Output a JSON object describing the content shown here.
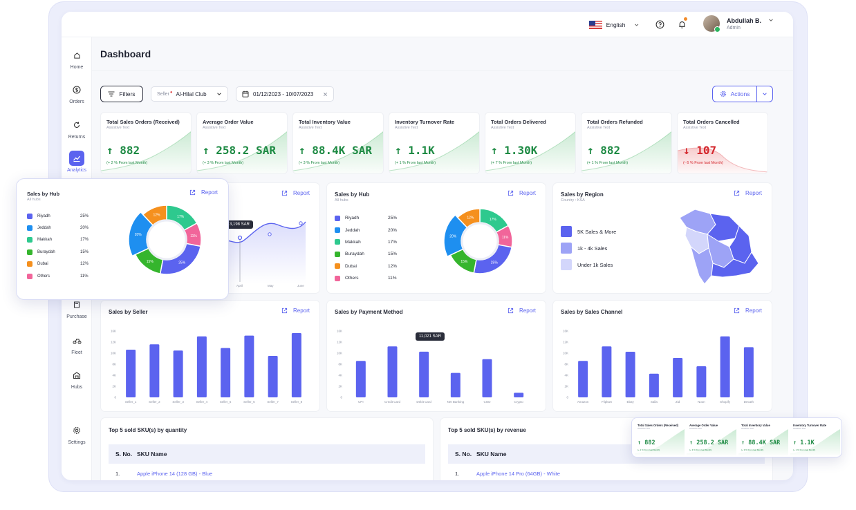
{
  "header": {
    "language": "English",
    "user_name": "Abdullah B.",
    "user_role": "Admin"
  },
  "sidebar": {
    "items": [
      {
        "label": "Home",
        "icon": "home-icon"
      },
      {
        "label": "Orders",
        "icon": "dollar-icon"
      },
      {
        "label": "Returns",
        "icon": "returns-icon"
      },
      {
        "label": "Analytics",
        "icon": "analytics-icon",
        "active": true
      },
      {
        "label": "Purchase",
        "icon": "purchase-icon"
      },
      {
        "label": "Fleet",
        "icon": "fleet-icon"
      },
      {
        "label": "Hubs",
        "icon": "hubs-icon"
      },
      {
        "label": "Settings",
        "icon": "gear-icon"
      }
    ]
  },
  "page": {
    "title": "Dashboard",
    "filters_label": "Filters",
    "seller_label": "Seller",
    "seller_value": "Al-Hilal Club",
    "date_range": "01/12/2023 - 10/07/2023",
    "actions_label": "Actions"
  },
  "kpis": [
    {
      "title": "Total Sales Orders (Received)",
      "sub": "Assistive Text",
      "value": "↑ 882",
      "note": "(+ 2 % From last Month)",
      "trend": "up"
    },
    {
      "title": "Average Order Value",
      "sub": "Assistive Text",
      "value": "↑ 258.2 SAR",
      "note": "(+ 3 % From last Month)",
      "trend": "up"
    },
    {
      "title": "Total Inventory Value",
      "sub": "Assistive Text",
      "value": "↑ 88.4K SAR",
      "note": "(+ 3 % From last Month)",
      "trend": "up"
    },
    {
      "title": "Inventory Turnover Rate",
      "sub": "Assistive Text",
      "value": "↑ 1.1K",
      "note": "(+ 1 % From last Month)",
      "trend": "up"
    },
    {
      "title": "Total Orders Delivered",
      "sub": "Assistive Text",
      "value": "↑ 1.30K",
      "note": "(+ 7 % From last Month)",
      "trend": "up"
    },
    {
      "title": "Total Orders Refunded",
      "sub": "Assistive Text",
      "value": "↑ 882",
      "note": "(+ 1 % From last Month)",
      "trend": "up"
    },
    {
      "title": "Total Orders Cancelled",
      "sub": "Assistive Text",
      "value": "↓ 107",
      "note": "(- 6 % From last Month)",
      "trend": "down"
    }
  ],
  "report_label": "Report",
  "line_card": {
    "tooltip": "3,198 SAR",
    "x_labels": [
      "April",
      "May",
      "June"
    ]
  },
  "sales_by_hub": {
    "title": "Sales by Hub",
    "sub": "All hubs",
    "items": [
      {
        "name": "Riyadh",
        "pct": "25%",
        "value": 25,
        "color": "#5b63ef"
      },
      {
        "name": "Jeddah",
        "pct": "20%",
        "value": 20,
        "color": "#1e8ff0"
      },
      {
        "name": "Makkah",
        "pct": "17%",
        "value": 17,
        "color": "#2ec98e"
      },
      {
        "name": "Buraydah",
        "pct": "15%",
        "value": 15,
        "color": "#35b52d"
      },
      {
        "name": "Dubai",
        "pct": "12%",
        "value": 12,
        "color": "#f5901e"
      },
      {
        "name": "Others",
        "pct": "11%",
        "value": 11,
        "color": "#f1659a"
      }
    ]
  },
  "sales_by_region": {
    "title": "Sales by Region",
    "sub": "Country : KSA",
    "legend": [
      {
        "label": "5K Sales & More",
        "color": "#5b63ef"
      },
      {
        "label": "1k - 4k Sales",
        "color": "#9da3f6"
      },
      {
        "label": "Under 1k Sales",
        "color": "#d3d6fb"
      }
    ]
  },
  "bar_charts": {
    "y_ticks": [
      "16K",
      "12K",
      "10K",
      "8K",
      "4K",
      "2K",
      "0"
    ],
    "seller": {
      "title": "Sales by Seller",
      "chart_data": {
        "type": "bar",
        "categories": [
          "Seller_1",
          "Seller_2",
          "Seller_3",
          "Seller_4",
          "Seller_5",
          "Seller_6",
          "Seller_7",
          "Seller_8"
        ],
        "values": [
          11500,
          12800,
          11300,
          14700,
          11900,
          14900,
          10000,
          15500
        ],
        "ylim": [
          0,
          16000
        ]
      }
    },
    "payment": {
      "title": "Sales by Payment Method",
      "tooltip": "11,021 SAR",
      "chart_data": {
        "type": "bar",
        "categories": [
          "UPI",
          "Credit Card",
          "Debit Card",
          "Net Banking",
          "COD",
          "Crypto"
        ],
        "values": [
          8800,
          12300,
          11021,
          5900,
          9200,
          1100
        ],
        "ylim": [
          0,
          16000
        ]
      }
    },
    "channel": {
      "title": "Sales by Sales Channel",
      "chart_data": {
        "type": "bar",
        "categories": [
          "Amazon",
          "Flipkart",
          "Ebay",
          "Salla",
          "Zid",
          "Noon",
          "Shopify",
          "Decath"
        ],
        "values": [
          8800,
          12300,
          11000,
          5700,
          9500,
          7500,
          14700,
          12100
        ],
        "ylim": [
          0,
          16000
        ]
      }
    }
  },
  "tables": {
    "quantity": {
      "title": "Top 5 sold SKU(s) by quantity",
      "col_sno": "S. No.",
      "col_name": "SKU Name",
      "row_sno": "1.",
      "row_name": "Apple iPhone 14 (128 GB) - Blue"
    },
    "revenue": {
      "title": "Top 5 sold SKU(s) by revenue",
      "col_sno": "S. No.",
      "col_name": "SKU Name",
      "row_sno": "1.",
      "row_name": "Apple iPhone 14 Pro (64GB) - White"
    }
  },
  "float_kpis": [
    {
      "title": "Total Sales Orders (Received)",
      "sub": "Assistive Text",
      "value": "↑ 882",
      "note": "(+ 2 % From last Month)"
    },
    {
      "title": "Average Order Value",
      "sub": "Assistive Text",
      "value": "↑ 258.2 SAR",
      "note": "(+ 3 % From last Month)"
    },
    {
      "title": "Total Inventory Value",
      "sub": "Assistive Text",
      "value": "↑ 88.4K SAR",
      "note": "(+ 3 % From last Month)"
    },
    {
      "title": "Inventory Turnover Rate",
      "sub": "Assistive Text",
      "value": "↑ 1.1K",
      "note": "(+ 1 % From last Month)"
    }
  ]
}
